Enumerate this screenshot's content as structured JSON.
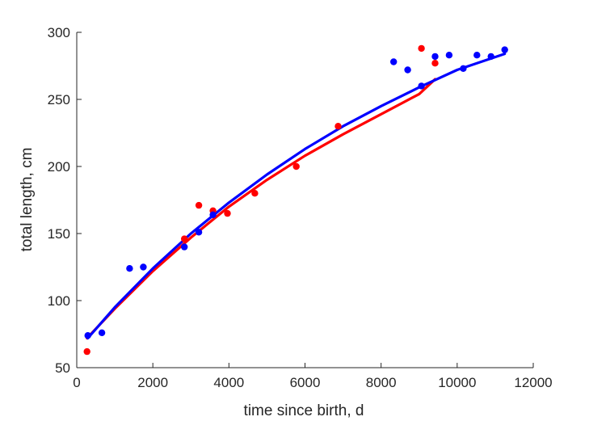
{
  "chart_data": {
    "type": "scatter",
    "title": "",
    "xlabel": "time since birth, d",
    "ylabel": "total length, cm",
    "xlim": [
      0,
      12000
    ],
    "ylim": [
      50,
      300
    ],
    "xticks": [
      0,
      2000,
      4000,
      6000,
      8000,
      10000,
      12000
    ],
    "yticks": [
      50,
      100,
      150,
      200,
      250,
      300
    ],
    "grid": false,
    "series": [
      {
        "name": "red data",
        "color": "#ff0000",
        "points": [
          [
            270,
            62
          ],
          [
            2830,
            146
          ],
          [
            3210,
            171
          ],
          [
            3580,
            167
          ],
          [
            3960,
            165
          ],
          [
            4680,
            180
          ],
          [
            5770,
            200
          ],
          [
            6870,
            230
          ],
          [
            9060,
            288
          ],
          [
            9420,
            277
          ]
        ]
      },
      {
        "name": "blue data",
        "color": "#0000ff",
        "points": [
          [
            290,
            74
          ],
          [
            660,
            76
          ],
          [
            1390,
            124
          ],
          [
            1750,
            125
          ],
          [
            2830,
            140
          ],
          [
            3210,
            151
          ],
          [
            3580,
            164
          ],
          [
            8330,
            278
          ],
          [
            8700,
            272
          ],
          [
            9060,
            260
          ],
          [
            9420,
            282
          ],
          [
            9790,
            283
          ],
          [
            10160,
            273
          ],
          [
            10520,
            283
          ],
          [
            10890,
            282
          ],
          [
            11250,
            287
          ]
        ]
      }
    ],
    "fits": [
      {
        "name": "red fit",
        "color": "#ff0000",
        "points": [
          [
            270,
            72
          ],
          [
            1000,
            94
          ],
          [
            2000,
            122
          ],
          [
            3000,
            147
          ],
          [
            4000,
            170
          ],
          [
            5000,
            190
          ],
          [
            6000,
            208
          ],
          [
            7000,
            224
          ],
          [
            8000,
            239
          ],
          [
            9000,
            254
          ],
          [
            9420,
            265
          ]
        ]
      },
      {
        "name": "blue fit",
        "color": "#0000ff",
        "points": [
          [
            290,
            72
          ],
          [
            1000,
            95
          ],
          [
            2000,
            124
          ],
          [
            3000,
            150
          ],
          [
            4000,
            173
          ],
          [
            5000,
            194
          ],
          [
            6000,
            213
          ],
          [
            7000,
            230
          ],
          [
            8000,
            245
          ],
          [
            9000,
            259
          ],
          [
            10000,
            272
          ],
          [
            11250,
            284
          ]
        ]
      }
    ]
  }
}
